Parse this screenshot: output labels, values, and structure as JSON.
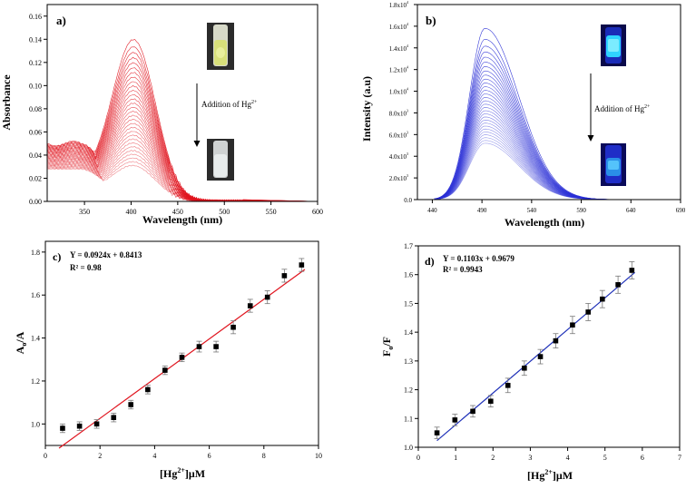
{
  "chart_data": [
    {
      "panel": "a)",
      "type": "line",
      "xlabel": "Wavelength (nm)",
      "ylabel": "Absorbance",
      "xlim": [
        310,
        600
      ],
      "ylim": [
        0,
        0.17
      ],
      "x_ticks": [
        350,
        400,
        450,
        500,
        550,
        600
      ],
      "x_tick_labels": [
        "350",
        "400",
        "450",
        "500",
        "550",
        "600"
      ],
      "y_ticks": [
        0.0,
        0.02,
        0.04,
        0.06,
        0.08,
        0.1,
        0.12,
        0.14,
        0.16
      ],
      "y_tick_labels": [
        "0.00",
        "0.02",
        "0.04",
        "0.06",
        "0.08",
        "0.10",
        "0.12",
        "0.14",
        "0.16"
      ],
      "annotation": "Addition of Hg",
      "annotation_sup": "2+",
      "series_count": 30,
      "peak_wavelength": 403,
      "peak_first": 0.138,
      "peak_last": 0.03,
      "shoulder_first": 0.05,
      "shoulder_last": 0.028,
      "inset_top": "yellow vial",
      "inset_bottom": "colorless vial",
      "color": "#e0141e"
    },
    {
      "panel": "b)",
      "type": "line",
      "xlabel": "Wavelength (nm)",
      "ylabel": "Intensity (a.u)",
      "xlim": [
        425,
        690
      ],
      "ylim": [
        0,
        18000
      ],
      "x_ticks": [
        440,
        490,
        540,
        590,
        640,
        690
      ],
      "x_tick_labels": [
        "440",
        "490",
        "540",
        "590",
        "640",
        "690"
      ],
      "y_ticks": [
        0,
        2000,
        4000,
        6000,
        8000,
        10000,
        12000,
        14000,
        16000,
        18000
      ],
      "y_tick_labels": [
        "0.0",
        "2.0x10",
        "4.0x10",
        "6.0x10",
        "8.0x10",
        "1.0x10",
        "1.2x10",
        "1.4x10",
        "1.6x10",
        "1.8x10"
      ],
      "y_tick_exps": [
        "",
        "3",
        "3",
        "3",
        "3",
        "4",
        "4",
        "4",
        "4",
        "4"
      ],
      "annotation": "Addition of Hg",
      "annotation_sup": "2+",
      "series_count": 30,
      "peak_wavelength": 493,
      "peak_first": 15800,
      "peak_last": 5200,
      "inset_top": "cyan fluorescent vial",
      "inset_bottom": "blue vial",
      "color": "#2b30d6"
    },
    {
      "panel": "c)",
      "type": "scatter",
      "xlabel": "[Hg",
      "xlabel_sup": "2+",
      "xlabel_tail": "]μM",
      "ylabel": "A",
      "ylabel_sub": "o",
      "ylabel_tail": "/A",
      "xlim": [
        0,
        10
      ],
      "ylim": [
        0.9,
        1.85
      ],
      "x_ticks": [
        0,
        2,
        4,
        6,
        8,
        10
      ],
      "x_tick_labels": [
        "0",
        "2",
        "4",
        "6",
        "8",
        "10"
      ],
      "y_ticks": [
        1.0,
        1.2,
        1.4,
        1.6,
        1.8
      ],
      "y_tick_labels": [
        "1.0",
        "1.2",
        "1.4",
        "1.6",
        "1.8"
      ],
      "equation": "Y = 0.0924x + 0.8413",
      "r2": "R² = 0.98",
      "fit": {
        "slope": 0.0924,
        "intercept": 0.8413,
        "x_range": [
          0.5,
          9.5
        ]
      },
      "x": [
        0.63,
        1.25,
        1.88,
        2.5,
        3.13,
        3.75,
        4.38,
        5.0,
        5.63,
        6.25,
        6.88,
        7.5,
        8.13,
        8.75,
        9.38
      ],
      "y": [
        0.98,
        0.99,
        1.0,
        1.03,
        1.09,
        1.16,
        1.25,
        1.31,
        1.36,
        1.36,
        1.45,
        1.55,
        1.59,
        1.69,
        1.74
      ],
      "yerr": [
        0.02,
        0.02,
        0.02,
        0.02,
        0.02,
        0.02,
        0.02,
        0.02,
        0.025,
        0.025,
        0.03,
        0.03,
        0.03,
        0.03,
        0.03
      ],
      "marker_color": "#000000",
      "fit_color": "#e0141e"
    },
    {
      "panel": "d)",
      "type": "scatter",
      "xlabel": "[Hg",
      "xlabel_sup": "2+",
      "xlabel_tail": "]μM",
      "ylabel": "F",
      "ylabel_sub": "o",
      "ylabel_tail": "/F",
      "xlim": [
        0,
        7
      ],
      "ylim": [
        1.0,
        1.7
      ],
      "x_ticks": [
        0,
        1,
        2,
        3,
        4,
        5,
        6,
        7
      ],
      "x_tick_labels": [
        "0",
        "1",
        "2",
        "3",
        "4",
        "5",
        "6",
        "7"
      ],
      "y_ticks": [
        1.0,
        1.1,
        1.2,
        1.3,
        1.4,
        1.5,
        1.6,
        1.7
      ],
      "y_tick_labels": [
        "1.0",
        "1.1",
        "1.2",
        "1.3",
        "1.4",
        "1.5",
        "1.6",
        "1.7"
      ],
      "equation": "Y = 0.1103x + 0.9679",
      "r2": "R² = 0.9943",
      "fit": {
        "slope": 0.1103,
        "intercept": 0.9679,
        "x_range": [
          0.5,
          5.8
        ]
      },
      "x": [
        0.5,
        0.98,
        1.46,
        1.94,
        2.4,
        2.84,
        3.27,
        3.68,
        4.13,
        4.55,
        4.93,
        5.35,
        5.72
      ],
      "y": [
        1.05,
        1.095,
        1.125,
        1.16,
        1.215,
        1.275,
        1.315,
        1.37,
        1.425,
        1.47,
        1.515,
        1.565,
        1.615
      ],
      "yerr": [
        0.02,
        0.02,
        0.02,
        0.02,
        0.025,
        0.025,
        0.025,
        0.025,
        0.03,
        0.03,
        0.03,
        0.03,
        0.03
      ],
      "marker_color": "#000000",
      "fit_color": "#1d2fb8"
    }
  ]
}
